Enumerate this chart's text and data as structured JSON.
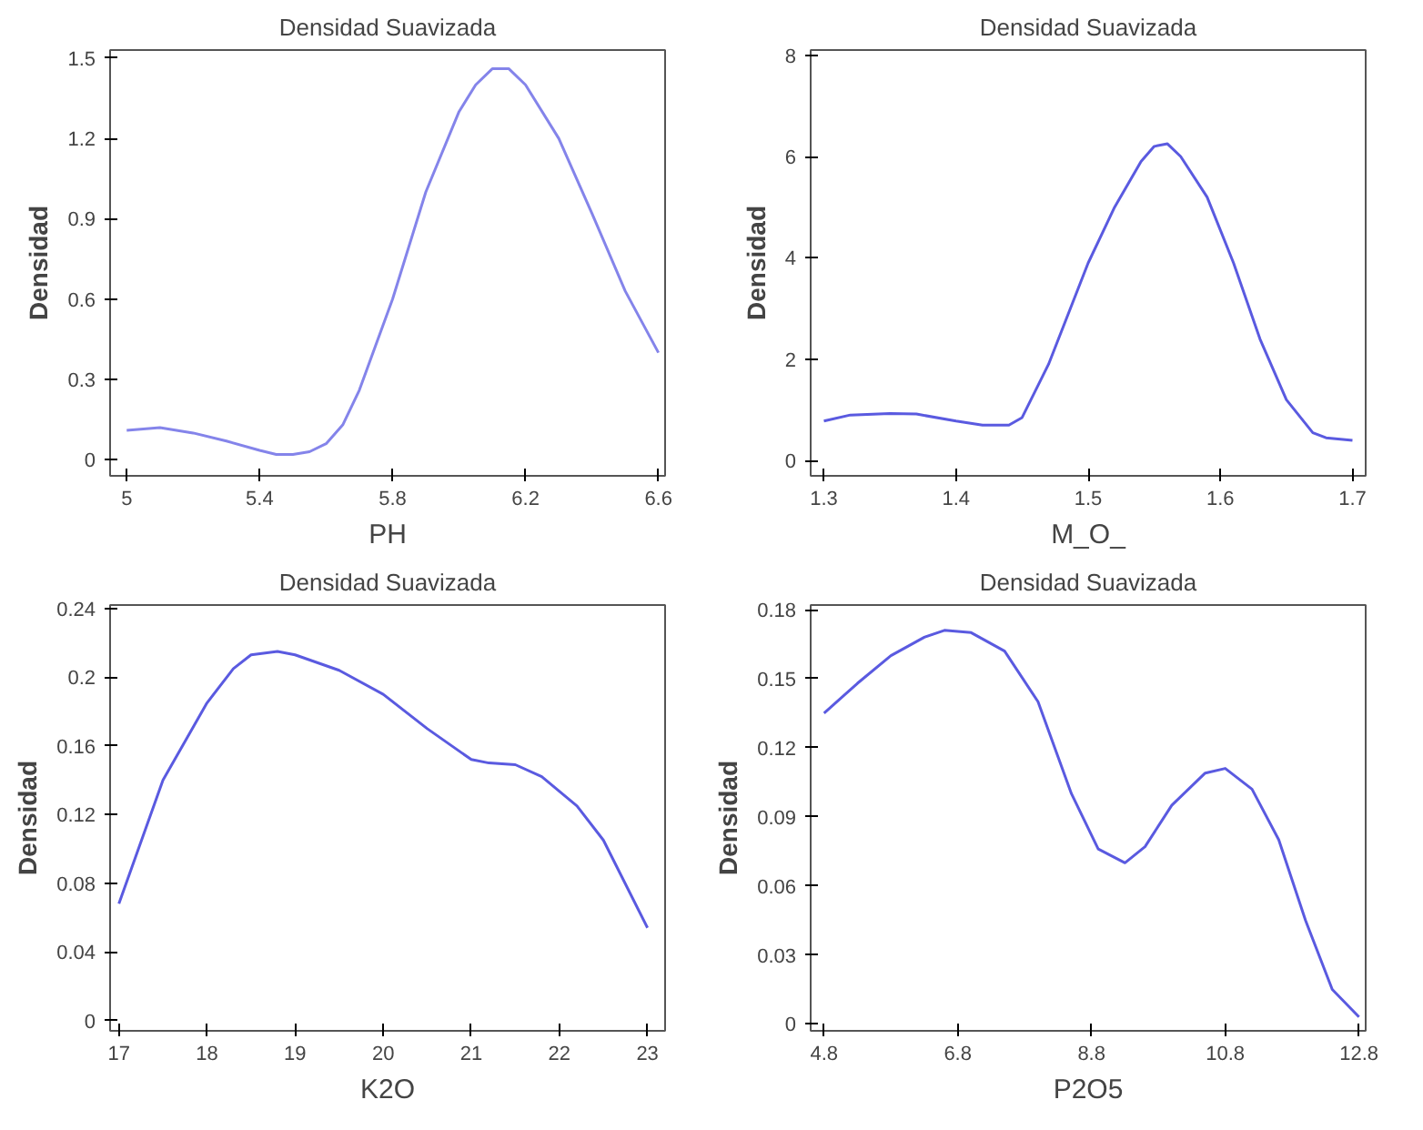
{
  "chart_data": [
    {
      "type": "line",
      "title": "Densidad Suavizada",
      "xlabel": "PH",
      "ylabel": "Densidad",
      "grid": false,
      "xlim": [
        4.95,
        6.62
      ],
      "ylim": [
        -0.06,
        1.53
      ],
      "xticks": [
        5,
        5.4,
        5.8,
        6.2,
        6.6
      ],
      "yticks": [
        0,
        0.3,
        0.6,
        0.9,
        1.2,
        1.5
      ],
      "series": [
        {
          "color": "#8484ea",
          "x": [
            5.0,
            5.1,
            5.2,
            5.3,
            5.4,
            5.45,
            5.5,
            5.55,
            5.6,
            5.65,
            5.7,
            5.8,
            5.9,
            6.0,
            6.05,
            6.1,
            6.15,
            6.2,
            6.3,
            6.4,
            6.5,
            6.6
          ],
          "values": [
            0.11,
            0.12,
            0.1,
            0.07,
            0.035,
            0.02,
            0.02,
            0.03,
            0.06,
            0.13,
            0.26,
            0.6,
            1.0,
            1.3,
            1.4,
            1.46,
            1.46,
            1.4,
            1.2,
            0.92,
            0.63,
            0.4
          ]
        }
      ]
    },
    {
      "type": "line",
      "title": "Densidad Suavizada",
      "xlabel": "M_O_",
      "ylabel": "Densidad",
      "grid": false,
      "xlim": [
        1.29,
        1.71
      ],
      "ylim": [
        -0.3,
        8.1
      ],
      "xticks": [
        1.3,
        1.4,
        1.5,
        1.6,
        1.7
      ],
      "yticks": [
        0,
        2,
        4,
        6,
        8
      ],
      "series": [
        {
          "color": "#5a5ae0",
          "x": [
            1.3,
            1.32,
            1.35,
            1.37,
            1.4,
            1.42,
            1.44,
            1.45,
            1.47,
            1.5,
            1.52,
            1.54,
            1.55,
            1.56,
            1.57,
            1.59,
            1.61,
            1.63,
            1.65,
            1.67,
            1.68,
            1.7
          ],
          "values": [
            0.78,
            0.9,
            0.93,
            0.92,
            0.78,
            0.7,
            0.7,
            0.85,
            1.9,
            3.9,
            5.0,
            5.9,
            6.2,
            6.25,
            6.0,
            5.2,
            3.9,
            2.4,
            1.2,
            0.55,
            0.45,
            0.4
          ]
        }
      ]
    },
    {
      "type": "line",
      "title": "Densidad Suavizada",
      "xlabel": "K2O",
      "ylabel": "Densidad",
      "grid": false,
      "xlim": [
        16.9,
        23.2
      ],
      "ylim": [
        -0.006,
        0.242
      ],
      "xticks": [
        17,
        18,
        19,
        20,
        21,
        22,
        23
      ],
      "yticks": [
        0,
        0.04,
        0.08,
        0.12,
        0.16,
        0.2,
        0.24
      ],
      "series": [
        {
          "color": "#5a5ae0",
          "x": [
            17,
            17.5,
            18,
            18.3,
            18.5,
            18.8,
            19,
            19.5,
            20,
            20.5,
            21,
            21.2,
            21.5,
            21.8,
            22.2,
            22.5,
            23
          ],
          "values": [
            0.068,
            0.14,
            0.185,
            0.205,
            0.213,
            0.215,
            0.213,
            0.204,
            0.19,
            0.17,
            0.152,
            0.15,
            0.149,
            0.142,
            0.125,
            0.105,
            0.054
          ]
        }
      ]
    },
    {
      "type": "line",
      "title": "Densidad Suavizada",
      "xlabel": "P2O5",
      "ylabel": "Densidad",
      "grid": false,
      "xlim": [
        4.6,
        12.9
      ],
      "ylim": [
        -0.003,
        0.182
      ],
      "xticks": [
        4.8,
        6.8,
        8.8,
        10.8,
        12.8
      ],
      "yticks": [
        0,
        0.03,
        0.06,
        0.09,
        0.12,
        0.15,
        0.18
      ],
      "series": [
        {
          "color": "#5a5ae0",
          "x": [
            4.8,
            5.3,
            5.8,
            6.3,
            6.6,
            7.0,
            7.5,
            8.0,
            8.5,
            8.9,
            9.3,
            9.6,
            10.0,
            10.5,
            10.8,
            11.2,
            11.6,
            12.0,
            12.4,
            12.8
          ],
          "values": [
            0.135,
            0.148,
            0.16,
            0.168,
            0.171,
            0.17,
            0.162,
            0.14,
            0.1,
            0.076,
            0.07,
            0.077,
            0.095,
            0.109,
            0.111,
            0.102,
            0.08,
            0.045,
            0.015,
            0.003
          ]
        }
      ]
    }
  ]
}
